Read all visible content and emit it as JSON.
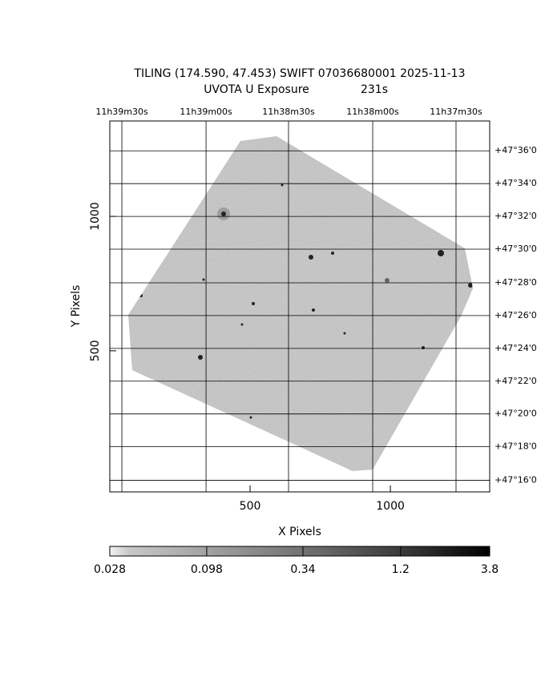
{
  "chart_data": {
    "type": "image",
    "title": "TILING (174.590, 47.453) SWIFT 07036680001 2025-11-13",
    "subtitle": "UVOTA U Exposure",
    "exposure": "231s",
    "xlabel": "X Pixels",
    "ylabel": "Y Pixels",
    "xlim": [
      0,
      1354
    ],
    "ylim": [
      -25,
      1355
    ],
    "xticks": [
      500,
      1000
    ],
    "yticks": [
      500,
      1000
    ],
    "grid": true,
    "ra_ticks": [
      {
        "value": 43,
        "label": "11h39m30s"
      },
      {
        "value": 343,
        "label": "11h39m00s"
      },
      {
        "value": 637,
        "label": "11h38m30s"
      },
      {
        "value": 937,
        "label": "11h38m00s"
      },
      {
        "value": 1234,
        "label": "11h37m30s"
      }
    ],
    "dec_ticks": [
      {
        "value": 1244,
        "label": "+47°36'0"
      },
      {
        "value": 1122,
        "label": "+47°34'0"
      },
      {
        "value": 1000,
        "label": "+47°32'0"
      },
      {
        "value": 878,
        "label": "+47°30'0"
      },
      {
        "value": 753,
        "label": "+47°28'0"
      },
      {
        "value": 631,
        "label": "+47°26'0"
      },
      {
        "value": 509,
        "label": "+47°24'0"
      },
      {
        "value": 387,
        "label": "+47°22'0"
      },
      {
        "value": 265,
        "label": "+47°20'0"
      },
      {
        "value": 143,
        "label": "+47°18'0"
      },
      {
        "value": 18,
        "label": "+47°16'0"
      }
    ],
    "colorbar": {
      "lim": [
        0.028,
        3.8
      ],
      "ticks": [
        0.028,
        0.098,
        0.34,
        1.2,
        3.8
      ],
      "log": true
    }
  }
}
